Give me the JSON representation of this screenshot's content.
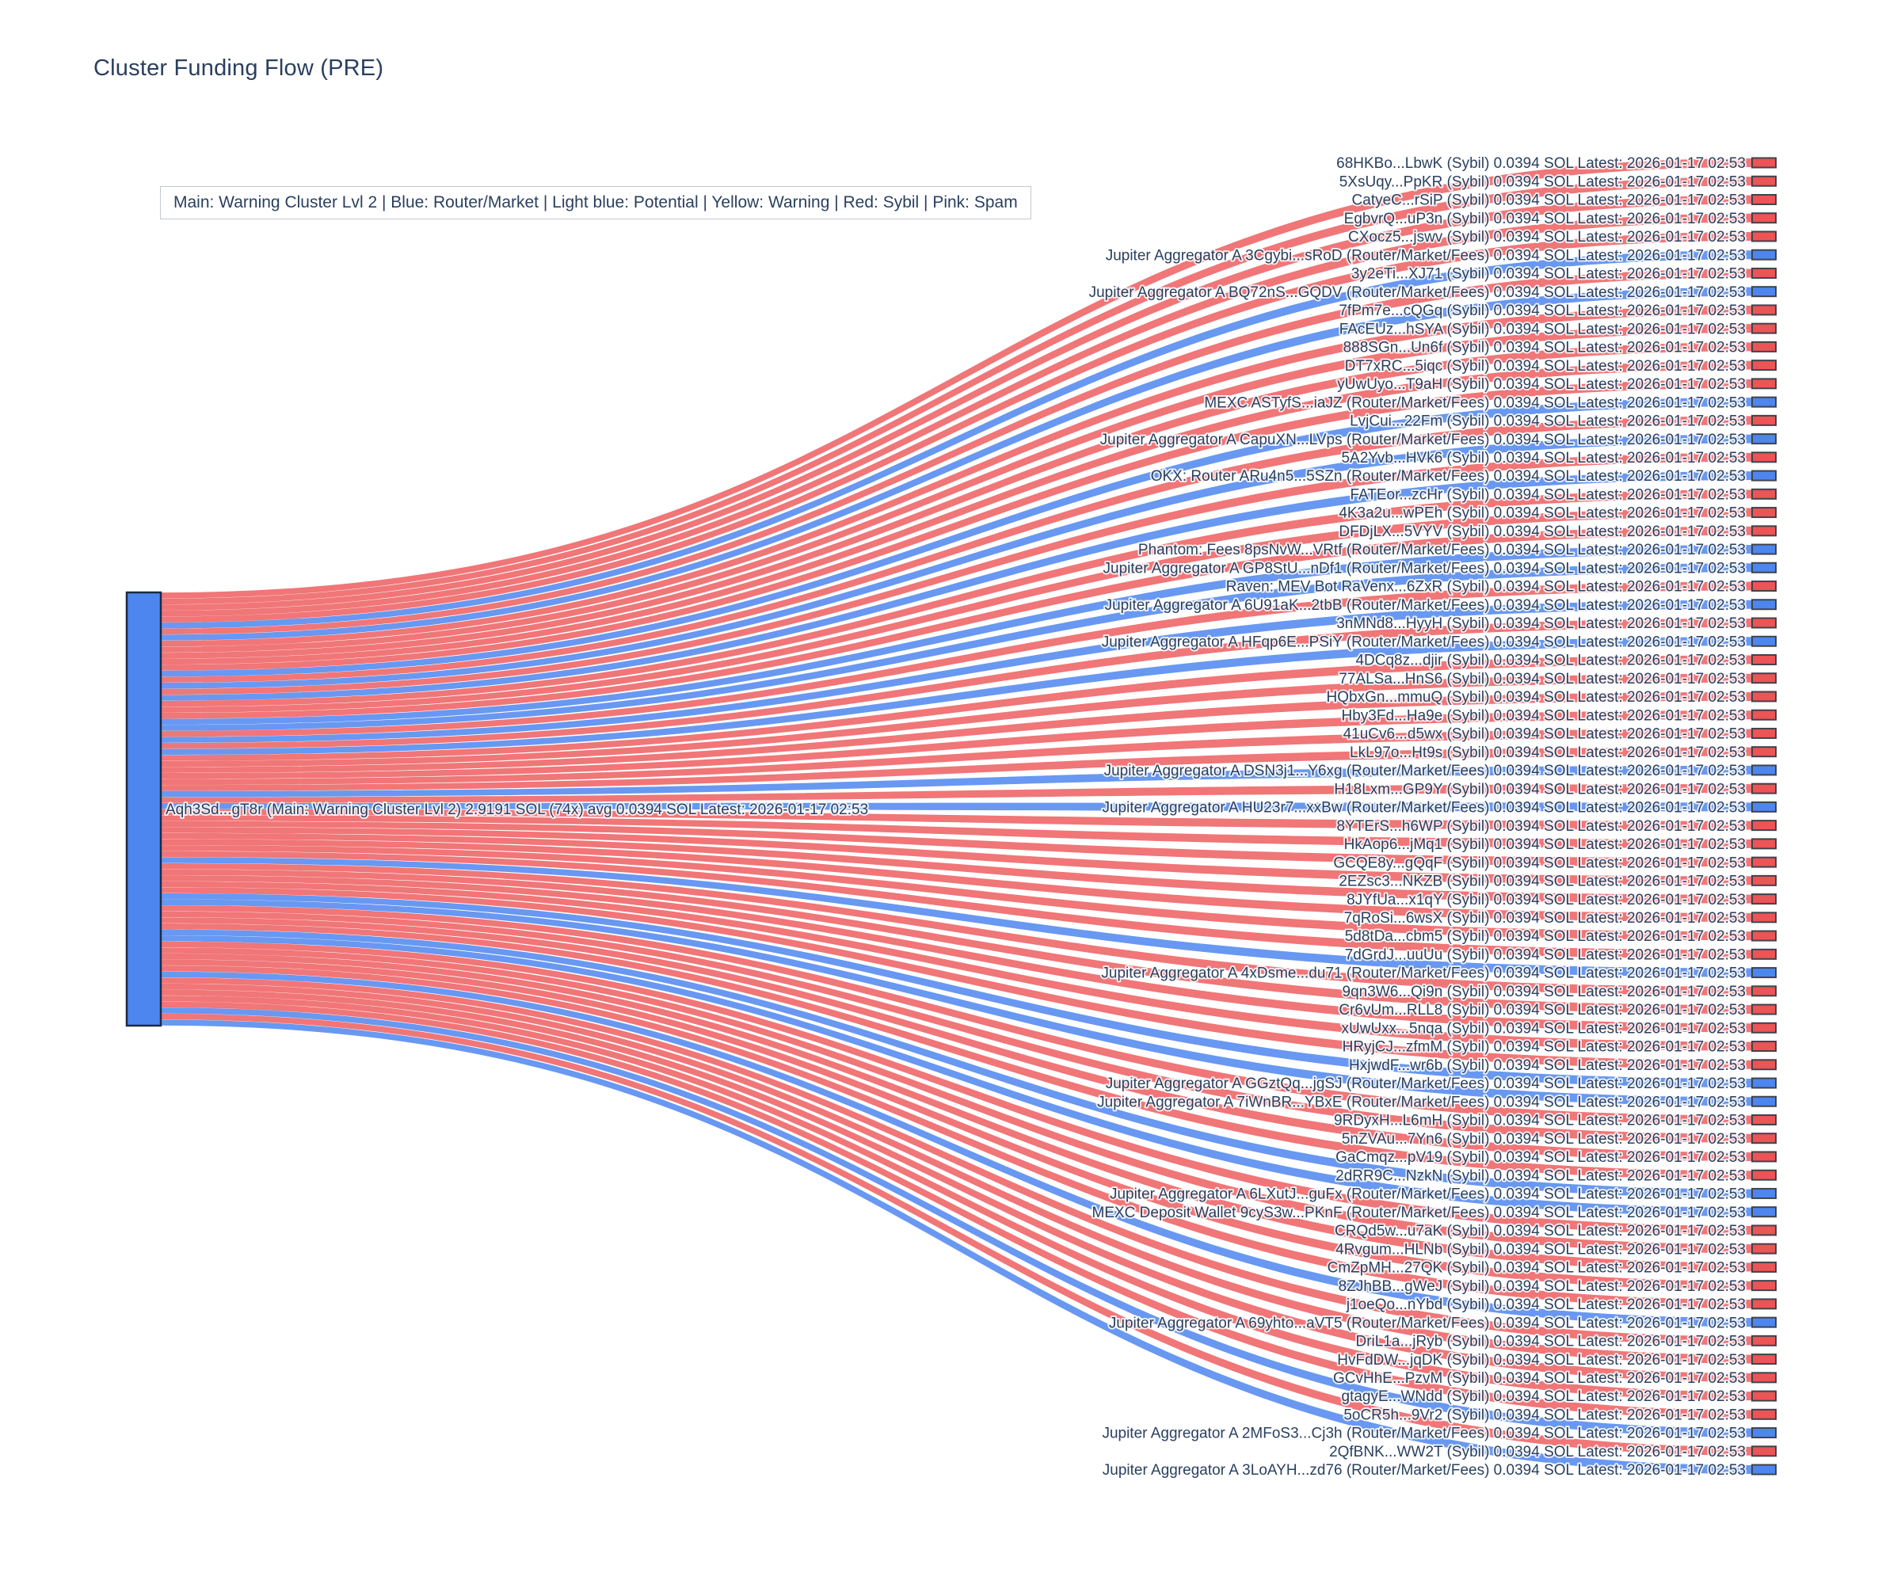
{
  "page_title": "Cluster Funding Flow (PRE)",
  "legend": {
    "text": "Main: Warning Cluster Lvl 2  |  Blue: Router/Market | Light blue: Potential | Yellow: Warning | Red: Sybil | Pink: Spam"
  },
  "chart_data": {
    "type": "sankey",
    "title": "Cluster Funding Flow (PRE)",
    "legend_position": "top",
    "per_link_sol": "0.0394",
    "latest": "2026-01-17 02:53",
    "colors": {
      "sybil": "#ec5456",
      "router": "#4d86ee",
      "node_border": "#1c2a45",
      "bar_border": "#3f434c",
      "label_text": "#2a3f5f"
    },
    "source_node": {
      "name": "Aqh3Sd...gT8r",
      "category": "Main: Warning Cluster Lvl 2",
      "total_sol": "2.9191",
      "tx_count": "74x",
      "avg_sol": "0.0394",
      "latest": "2026-01-17 02:53",
      "color": "#4d86ee"
    },
    "targets": [
      {
        "name": "68HKBo...LbwK",
        "category": "Sybil"
      },
      {
        "name": "5XsUqy...PpKR",
        "category": "Sybil"
      },
      {
        "name": "CatyeC...rSiP",
        "category": "Sybil"
      },
      {
        "name": "EgbvrQ...uP3n",
        "category": "Sybil"
      },
      {
        "name": "CXocz5...jswv",
        "category": "Sybil"
      },
      {
        "name": "Jupiter Aggregator A 3Cgybi...sRoD",
        "category": "Router/Market/Fees"
      },
      {
        "name": "3y2eTi...XJ71",
        "category": "Sybil"
      },
      {
        "name": "Jupiter Aggregator A BQ72nS...GQDV",
        "category": "Router/Market/Fees"
      },
      {
        "name": "7fPm7e...cQGq",
        "category": "Sybil"
      },
      {
        "name": "FAcEUz...hSYA",
        "category": "Sybil"
      },
      {
        "name": "888SGn...Un6f",
        "category": "Sybil"
      },
      {
        "name": "DT7xRC...5iqc",
        "category": "Sybil"
      },
      {
        "name": "yUwUyo...T9aH",
        "category": "Sybil"
      },
      {
        "name": "MEXC ASTyfS...iaJZ",
        "category": "Router/Market/Fees"
      },
      {
        "name": "LvjCui...22Fm",
        "category": "Sybil"
      },
      {
        "name": "Jupiter Aggregator A CapuXN...LVps",
        "category": "Router/Market/Fees"
      },
      {
        "name": "5A2Yvb...HVk6",
        "category": "Sybil"
      },
      {
        "name": "OKX: Router ARu4n5...5SZn",
        "category": "Router/Market/Fees"
      },
      {
        "name": "FATEor...zcHr",
        "category": "Sybil"
      },
      {
        "name": "4K3a2u...wPEh",
        "category": "Sybil"
      },
      {
        "name": "DFDjLX...5VYV",
        "category": "Sybil"
      },
      {
        "name": "Phantom: Fees 8psNvW...VRtf",
        "category": "Router/Market/Fees"
      },
      {
        "name": "Jupiter Aggregator A GP8StU...nDf1",
        "category": "Router/Market/Fees"
      },
      {
        "name": "Raven: MEV Bot RaVenx...6ZxR",
        "category": "Sybil"
      },
      {
        "name": "Jupiter Aggregator A 6U91aK...2tbB",
        "category": "Router/Market/Fees"
      },
      {
        "name": "3nMNd8...HyyH",
        "category": "Sybil"
      },
      {
        "name": "Jupiter Aggregator A HFqp6E...PSiY",
        "category": "Router/Market/Fees"
      },
      {
        "name": "4DCq8z...djir",
        "category": "Sybil"
      },
      {
        "name": "77ALSa...HnS6",
        "category": "Sybil"
      },
      {
        "name": "HQbxGn...mmuQ",
        "category": "Sybil"
      },
      {
        "name": "Hby3Fd...Ha9e",
        "category": "Sybil"
      },
      {
        "name": "41uCv6...d5wx",
        "category": "Sybil"
      },
      {
        "name": "LkL97o...Ht9s",
        "category": "Sybil"
      },
      {
        "name": "Jupiter Aggregator A DSN3j1...Y6xg",
        "category": "Router/Market/Fees"
      },
      {
        "name": "H18Lxm...GP9Y",
        "category": "Sybil"
      },
      {
        "name": "Jupiter Aggregator A HU23r7...xxBw",
        "category": "Router/Market/Fees"
      },
      {
        "name": "8YTErS...h6WP",
        "category": "Sybil"
      },
      {
        "name": "HkAop6...jMq1",
        "category": "Sybil"
      },
      {
        "name": "GCQE8y...gQqF",
        "category": "Sybil"
      },
      {
        "name": "2EZsc3...NKZB",
        "category": "Sybil"
      },
      {
        "name": "8JYfUa...x1qY",
        "category": "Sybil"
      },
      {
        "name": "7qRoSi...6wsX",
        "category": "Sybil"
      },
      {
        "name": "5d8tDa...cbm5",
        "category": "Sybil"
      },
      {
        "name": "7dGrdJ...uuUu",
        "category": "Sybil"
      },
      {
        "name": "Jupiter Aggregator A 4xDsme...du71",
        "category": "Router/Market/Fees"
      },
      {
        "name": "9qn3W6...Qi9n",
        "category": "Sybil"
      },
      {
        "name": "Cr6vUm...RLL8",
        "category": "Sybil"
      },
      {
        "name": "xUwUxx...5nqa",
        "category": "Sybil"
      },
      {
        "name": "HRyjCJ...zfmM",
        "category": "Sybil"
      },
      {
        "name": "HxjwdF...wr6b",
        "category": "Sybil"
      },
      {
        "name": "Jupiter Aggregator A GGztQq...jgSJ",
        "category": "Router/Market/Fees"
      },
      {
        "name": "Jupiter Aggregator A 7iWnBR...YBxE",
        "category": "Router/Market/Fees"
      },
      {
        "name": "9RDyxH...L6mH",
        "category": "Sybil"
      },
      {
        "name": "5nZVAu...7Yn6",
        "category": "Sybil"
      },
      {
        "name": "GaCmqz...pV19",
        "category": "Sybil"
      },
      {
        "name": "2dRR9C...NzkN",
        "category": "Sybil"
      },
      {
        "name": "Jupiter Aggregator A 6LXutJ...guFx",
        "category": "Router/Market/Fees"
      },
      {
        "name": "MEXC Deposit Wallet 9cyS3w...PKnF",
        "category": "Router/Market/Fees"
      },
      {
        "name": "CRQd5w...u7aK",
        "category": "Sybil"
      },
      {
        "name": "4Rvgum...HLNb",
        "category": "Sybil"
      },
      {
        "name": "CmZpMH...27QK",
        "category": "Sybil"
      },
      {
        "name": "8ZJhBB...gWeJ",
        "category": "Sybil"
      },
      {
        "name": "j1oeQo...nYbd",
        "category": "Sybil"
      },
      {
        "name": "Jupiter Aggregator A 69yhto...aVT5",
        "category": "Router/Market/Fees"
      },
      {
        "name": "DriL1a...jRyb",
        "category": "Sybil"
      },
      {
        "name": "HvFdDW...jqDK",
        "category": "Sybil"
      },
      {
        "name": "GCvHhE...PzvM",
        "category": "Sybil"
      },
      {
        "name": "gtagyE...WNdd",
        "category": "Sybil"
      },
      {
        "name": "5oCR5h...9Vr2",
        "category": "Sybil"
      },
      {
        "name": "Jupiter Aggregator A 2MFoS3...Cj3h",
        "category": "Router/Market/Fees"
      },
      {
        "name": "2QfBNK...WW2T",
        "category": "Sybil"
      },
      {
        "name": "Jupiter Aggregator A 3LoAYH...zd76",
        "category": "Router/Market/Fees"
      }
    ]
  }
}
